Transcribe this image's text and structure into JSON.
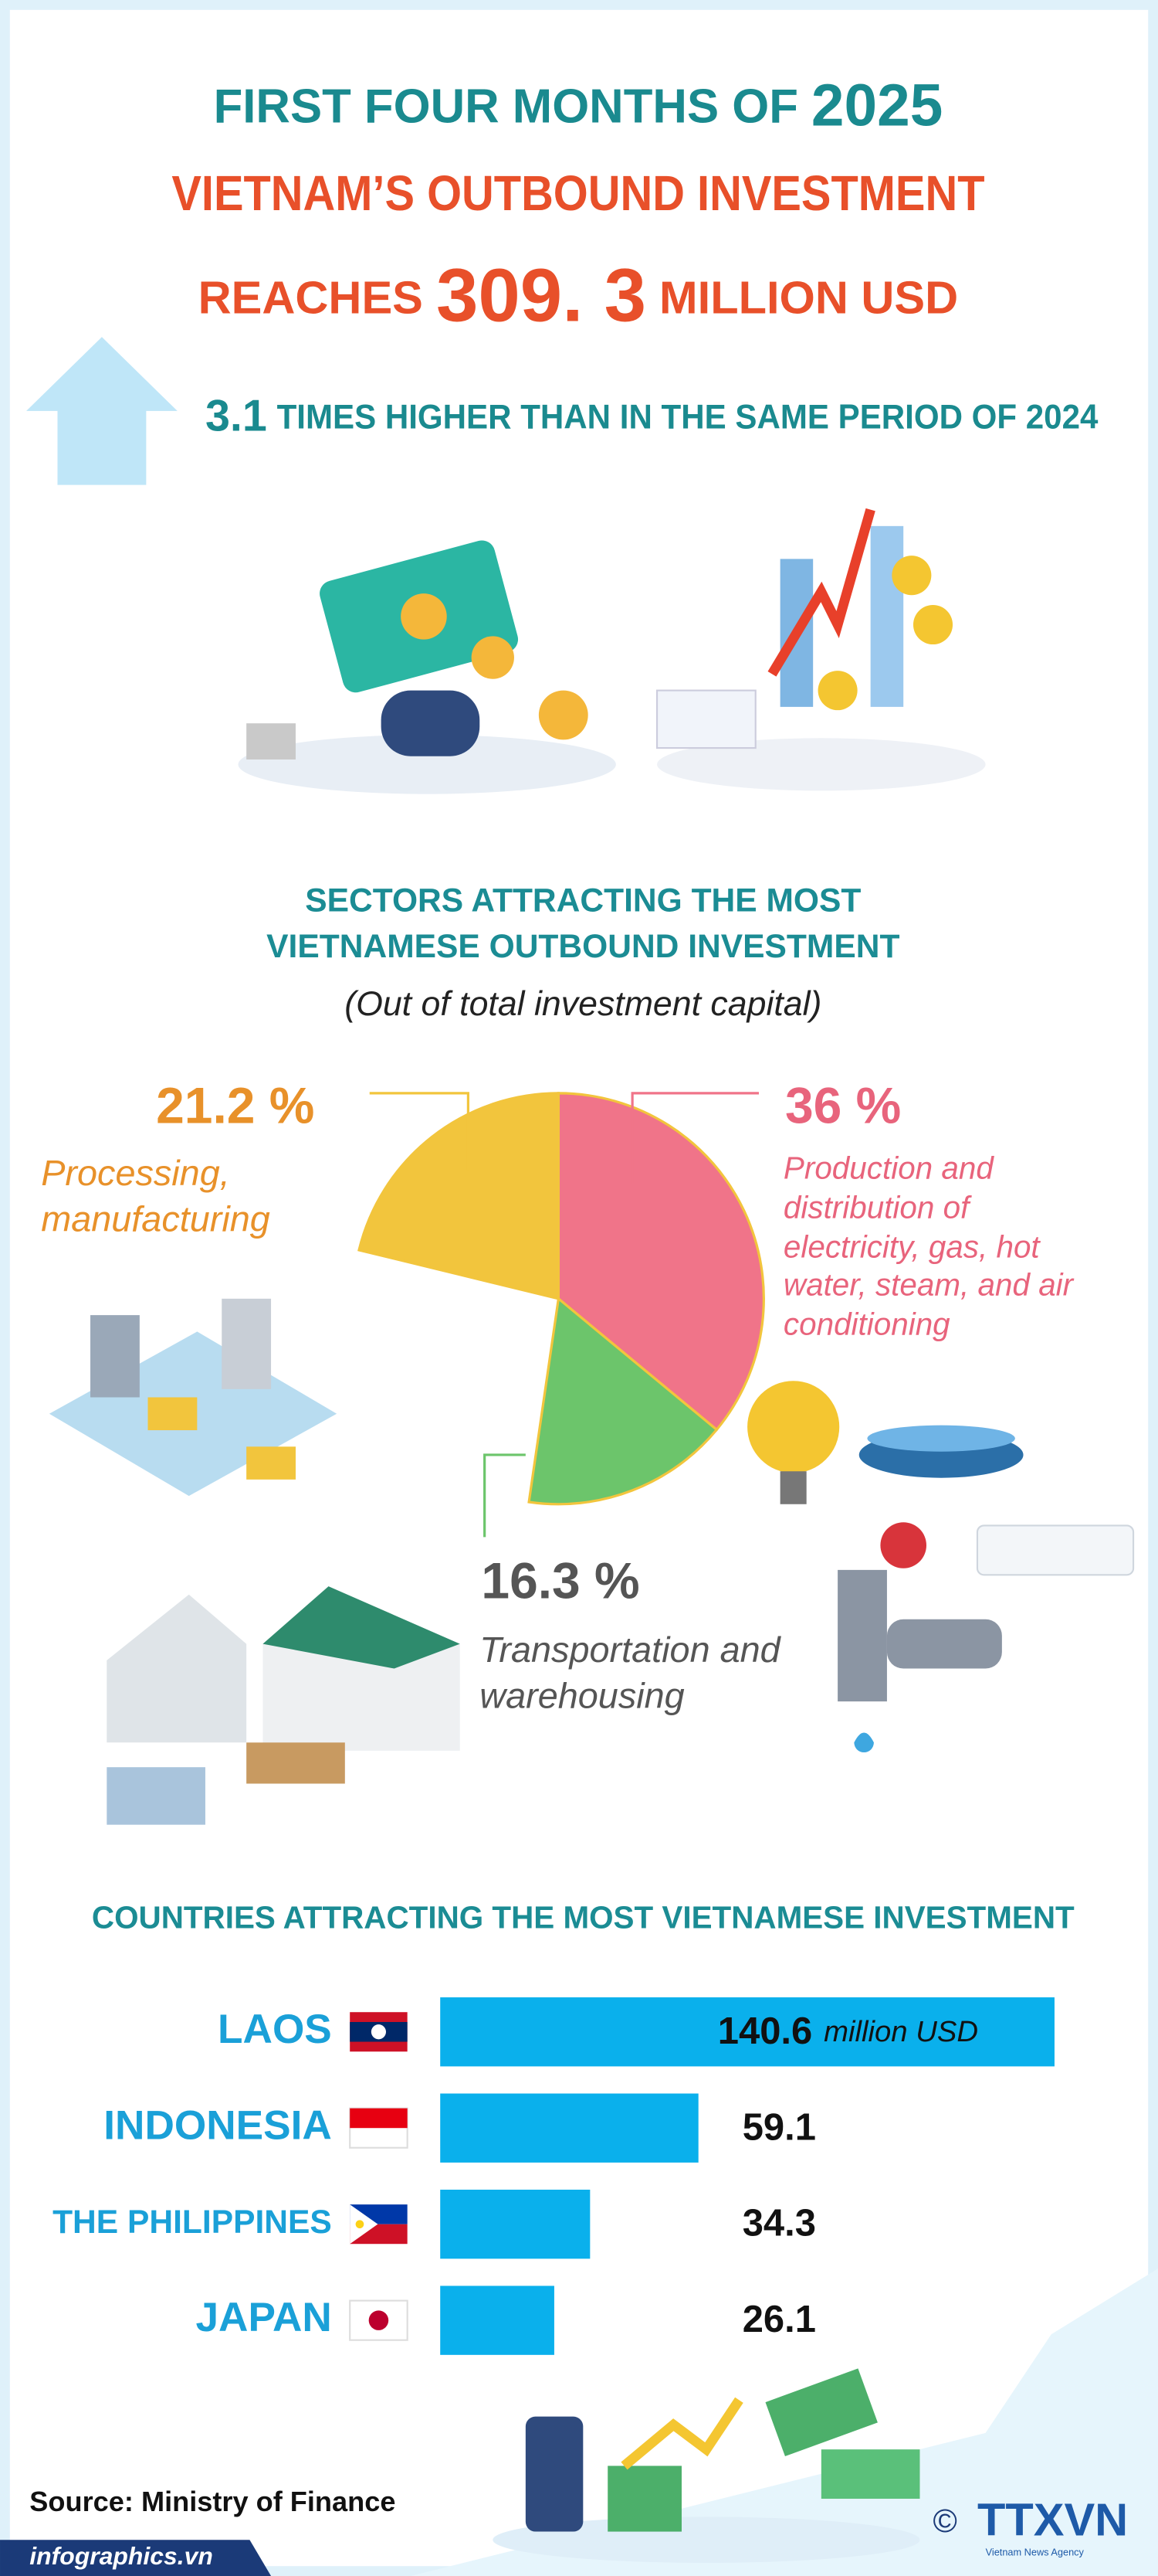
{
  "header": {
    "line1": "FIRST FOUR MONTHS OF",
    "year": "2025",
    "line2": "VIETNAM’S OUTBOUND INVESTMENT",
    "line3a": "REACHES",
    "amount": "309. 3",
    "line3b": "MILLION USD",
    "ratio": "3.1",
    "comparison": "TIMES HIGHER THAN IN THE SAME PERIOD OF 2024"
  },
  "chart_data": [
    {
      "type": "pie",
      "title": [
        "SECTORS ATTRACTING THE MOST",
        "VIETNAMESE OUTBOUND INVESTMENT"
      ],
      "subtitle": "(Out of total investment capital)",
      "categories": [
        "Processing, manufacturing",
        "Production and distribution of electricity, gas, hot water, steam, and air conditioning",
        "Transportation and warehousing"
      ],
      "values": [
        21.2,
        36,
        16.3
      ],
      "value_labels": [
        "21.2 %",
        "36 %",
        "16.3 %"
      ],
      "colors": [
        "#f2c53d",
        "#f07489",
        "#6cc56b"
      ],
      "label_colors": [
        "#e8912a",
        "#e8647c",
        "#555555"
      ]
    },
    {
      "type": "bar",
      "title": "COUNTRIES ATTRACTING THE MOST VIETNAMESE INVESTMENT",
      "categories": [
        "LAOS",
        "INDONESIA",
        "THE PHILIPPINES",
        "JAPAN"
      ],
      "values": [
        140.6,
        59.1,
        34.3,
        26.1
      ],
      "unit": "million USD",
      "color": "#0ab0ec"
    }
  ],
  "footer": {
    "source": "Source: Ministry of Finance",
    "site": "infographics.vn",
    "copyright": "©",
    "agency": "TTXVN",
    "agency_sub": "Vietnam News Agency"
  }
}
